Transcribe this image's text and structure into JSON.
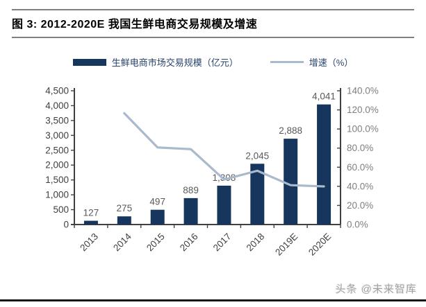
{
  "page": {
    "title": "图 3:  2012-2020E 我国生鲜电商交易规模及增速",
    "watermark": "头条 @未来智库"
  },
  "chart_data": {
    "type": "bar+line combo",
    "title": "2012-2020E 我国生鲜电商交易规模及增速",
    "categories": [
      "2013",
      "2014",
      "2015",
      "2016",
      "2017",
      "2018",
      "2019E",
      "2020E"
    ],
    "series": [
      {
        "name": "生鲜电商市场交易规模（亿元）",
        "type": "bar",
        "axis": "left",
        "color": "#17365D",
        "values": [
          127,
          275,
          497,
          889,
          1308,
          2045,
          2888,
          4041
        ],
        "labels": [
          "127",
          "275",
          "497",
          "889",
          "1,308",
          "2,045",
          "2,888",
          "4,041"
        ]
      },
      {
        "name": "增速（%）",
        "type": "line",
        "axis": "right",
        "color": "#A8BACB",
        "values": [
          null,
          116.5,
          80.7,
          78.9,
          47.1,
          56.3,
          41.2,
          39.9
        ]
      }
    ],
    "left_axis": {
      "min": 0,
      "max": 4500,
      "step": 500,
      "tick_labels": [
        "0",
        "500",
        "1,000",
        "1,500",
        "2,000",
        "2,500",
        "3,000",
        "3,500",
        "4,000",
        "4,500"
      ]
    },
    "right_axis": {
      "min": 0,
      "max": 140,
      "step": 20,
      "tick_labels": [
        "0.0%",
        "20.0%",
        "40.0%",
        "60.0%",
        "80.0%",
        "100.0%",
        "120.0%",
        "140.0%"
      ]
    },
    "legend_position": "top",
    "grid": false,
    "colors": {
      "bar": "#17365D",
      "line": "#A8BACB",
      "axis": "#404040",
      "left_tick_text": "#404040",
      "right_tick_text": "#7f7f7f",
      "x_tick_text": "#404040",
      "data_label": "#595959"
    }
  }
}
